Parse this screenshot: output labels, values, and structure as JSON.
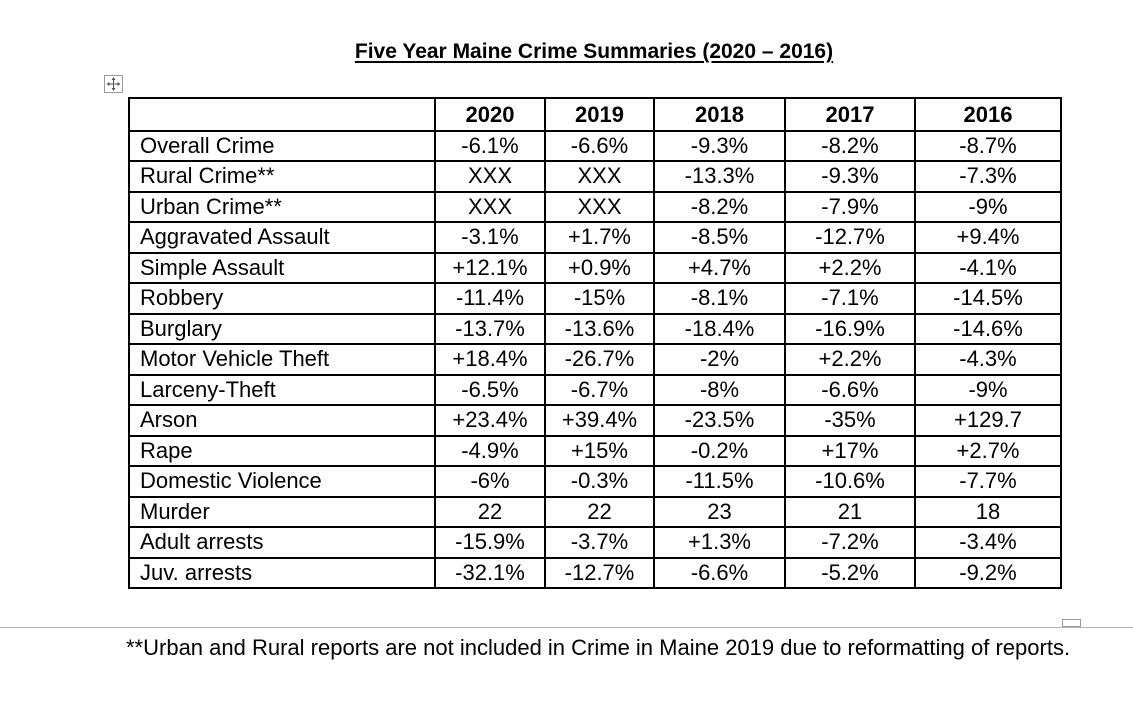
{
  "title": "Five Year Maine Crime Summaries (2020 – 2016)",
  "table": {
    "header": [
      "",
      "2020",
      "2019",
      "2018",
      "2017",
      "2016"
    ],
    "rows": [
      [
        "Overall Crime",
        "-6.1%",
        "-6.6%",
        "-9.3%",
        "-8.2%",
        "-8.7%"
      ],
      [
        "Rural Crime**",
        "XXX",
        "XXX",
        "-13.3%",
        "-9.3%",
        "-7.3%"
      ],
      [
        "Urban Crime**",
        "XXX",
        "XXX",
        "-8.2%",
        "-7.9%",
        "-9%"
      ],
      [
        "Aggravated Assault",
        "-3.1%",
        "+1.7%",
        "-8.5%",
        "-12.7%",
        "+9.4%"
      ],
      [
        "Simple Assault",
        "+12.1%",
        "+0.9%",
        "+4.7%",
        "+2.2%",
        "-4.1%"
      ],
      [
        "Robbery",
        "-11.4%",
        "-15%",
        "-8.1%",
        "-7.1%",
        "-14.5%"
      ],
      [
        "Burglary",
        "-13.7%",
        "-13.6%",
        "-18.4%",
        "-16.9%",
        "-14.6%"
      ],
      [
        "Motor Vehicle Theft",
        "+18.4%",
        "-26.7%",
        "-2%",
        "+2.2%",
        "-4.3%"
      ],
      [
        "Larceny-Theft",
        "-6.5%",
        "-6.7%",
        "-8%",
        "-6.6%",
        "-9%"
      ],
      [
        "Arson",
        "+23.4%",
        "+39.4%",
        "-23.5%",
        "-35%",
        "+129.7"
      ],
      [
        "Rape",
        "-4.9%",
        "+15%",
        "-0.2%",
        "+17%",
        "+2.7%"
      ],
      [
        "Domestic Violence",
        "-6%",
        "-0.3%",
        "-11.5%",
        "-10.6%",
        "-7.7%"
      ],
      [
        "Murder",
        "22",
        "22",
        "23",
        "21",
        "18"
      ],
      [
        "Adult arrests",
        "-15.9%",
        "-3.7%",
        "+1.3%",
        "-7.2%",
        "-3.4%"
      ],
      [
        "Juv. arrests",
        "-32.1%",
        "-12.7%",
        "-6.6%",
        "-5.2%",
        "-9.2%"
      ]
    ]
  },
  "footnote": "**Urban and Rural reports are not included in Crime in Maine 2019 due to reformatting of reports.",
  "icons": {
    "table_move_handle": "move-arrows-icon",
    "table_resize_handle": "resize-handle-icon"
  }
}
